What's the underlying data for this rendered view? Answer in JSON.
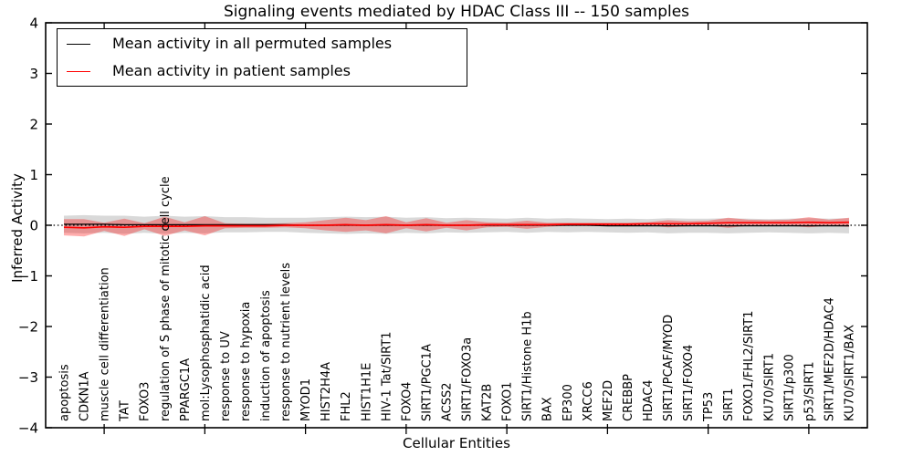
{
  "colors": {
    "background": "#ffffff",
    "axis": "#000000",
    "permuted_line": "#000000",
    "patient_line": "#ff0000",
    "permuted_band": "rgba(130,130,130,0.30)",
    "patient_band": "rgba(255,0,0,0.32)"
  },
  "chart_data": {
    "type": "line",
    "title": "Signaling events mediated by HDAC Class III -- 150 samples",
    "xlabel": "Cellular Entities",
    "ylabel": "Inferred Activity",
    "ylim": [
      -4,
      4
    ],
    "yticks": [
      -4,
      -3,
      -2,
      -1,
      0,
      1,
      2,
      3,
      4
    ],
    "xtick_marks": [
      2,
      7,
      12,
      17,
      22,
      27,
      32,
      37
    ],
    "grid": false,
    "legend_position": "upper left",
    "zero_reference_line": 0,
    "categories": [
      "apoptosis",
      "CDKN1A",
      "muscle cell differentiation",
      "TAT",
      "FOXO3",
      "regulation of S phase of mitotic cell cycle",
      "PPARGC1A",
      "mol:Lysophosphatidic acid",
      "response to UV",
      "response to hypoxia",
      "induction of apoptosis",
      "response to nutrient levels",
      "MYOD1",
      "HIST2H4A",
      "FHL2",
      "HIST1H1E",
      "HIV-1 Tat/SIRT1",
      "FOXO4",
      "SIRT1/PGC1A",
      "ACSS2",
      "SIRT1/FOXO3a",
      "KAT2B",
      "FOXO1",
      "SIRT1/Histone H1b",
      "BAX",
      "EP300",
      "XRCC6",
      "MEF2D",
      "CREBBP",
      "HDAC4",
      "SIRT1/PCAF/MYOD",
      "SIRT1/FOXO4",
      "TP53",
      "SIRT1",
      "FOXO1/FHL2/SIRT1",
      "KU70/SIRT1",
      "SIRT1/p300",
      "p53/SIRT1",
      "SIRT1/MEF2D/HDAC4",
      "KU70/SIRT1/BAX"
    ],
    "series": [
      {
        "name": "Mean activity in all permuted samples",
        "color": "#000000",
        "band_color": "rgba(130,130,130,0.30)",
        "values": [
          0.02,
          0.02,
          0.02,
          0.01,
          0.01,
          0.01,
          0.01,
          0.01,
          0.01,
          0.01,
          0.01,
          0.01,
          0,
          0,
          0,
          0,
          0,
          0,
          0,
          0,
          0,
          0,
          0,
          0,
          0,
          0,
          0,
          -0.01,
          -0.01,
          -0.01,
          -0.01,
          -0.01,
          -0.01,
          -0.01,
          -0.01,
          -0.01,
          -0.01,
          -0.01,
          -0.01,
          -0.01
        ],
        "band": [
          0.17,
          0.18,
          0.17,
          0.18,
          0.16,
          0.18,
          0.16,
          0.17,
          0.15,
          0.15,
          0.14,
          0.14,
          0.15,
          0.16,
          0.17,
          0.16,
          0.17,
          0.15,
          0.16,
          0.14,
          0.15,
          0.14,
          0.13,
          0.15,
          0.13,
          0.14,
          0.13,
          0.13,
          0.14,
          0.13,
          0.15,
          0.14,
          0.14,
          0.15,
          0.14,
          0.13,
          0.14,
          0.15,
          0.14,
          0.15
        ]
      },
      {
        "name": "Mean activity in patient samples",
        "color": "#ff0000",
        "band_color": "rgba(255,0,0,0.32)",
        "values": [
          -0.04,
          -0.05,
          -0.03,
          -0.04,
          -0.02,
          -0.02,
          -0.02,
          -0.01,
          -0.01,
          -0.01,
          -0.01,
          0,
          0,
          0,
          0.01,
          0,
          0.01,
          0,
          0.01,
          0,
          0,
          0.01,
          0.01,
          0.01,
          0.01,
          0.02,
          0.02,
          0.02,
          0.02,
          0.03,
          0.03,
          0.03,
          0.04,
          0.05,
          0.05,
          0.05,
          0.05,
          0.06,
          0.05,
          0.06
        ],
        "band": [
          0.16,
          0.17,
          0.08,
          0.17,
          0.06,
          0.19,
          0.08,
          0.19,
          0.05,
          0.04,
          0.04,
          0.04,
          0.06,
          0.1,
          0.14,
          0.1,
          0.17,
          0.06,
          0.13,
          0.05,
          0.1,
          0.05,
          0.04,
          0.08,
          0.04,
          0.03,
          0.03,
          0.03,
          0.03,
          0.03,
          0.07,
          0.05,
          0.05,
          0.1,
          0.06,
          0.05,
          0.06,
          0.1,
          0.06,
          0.09
        ]
      }
    ]
  }
}
